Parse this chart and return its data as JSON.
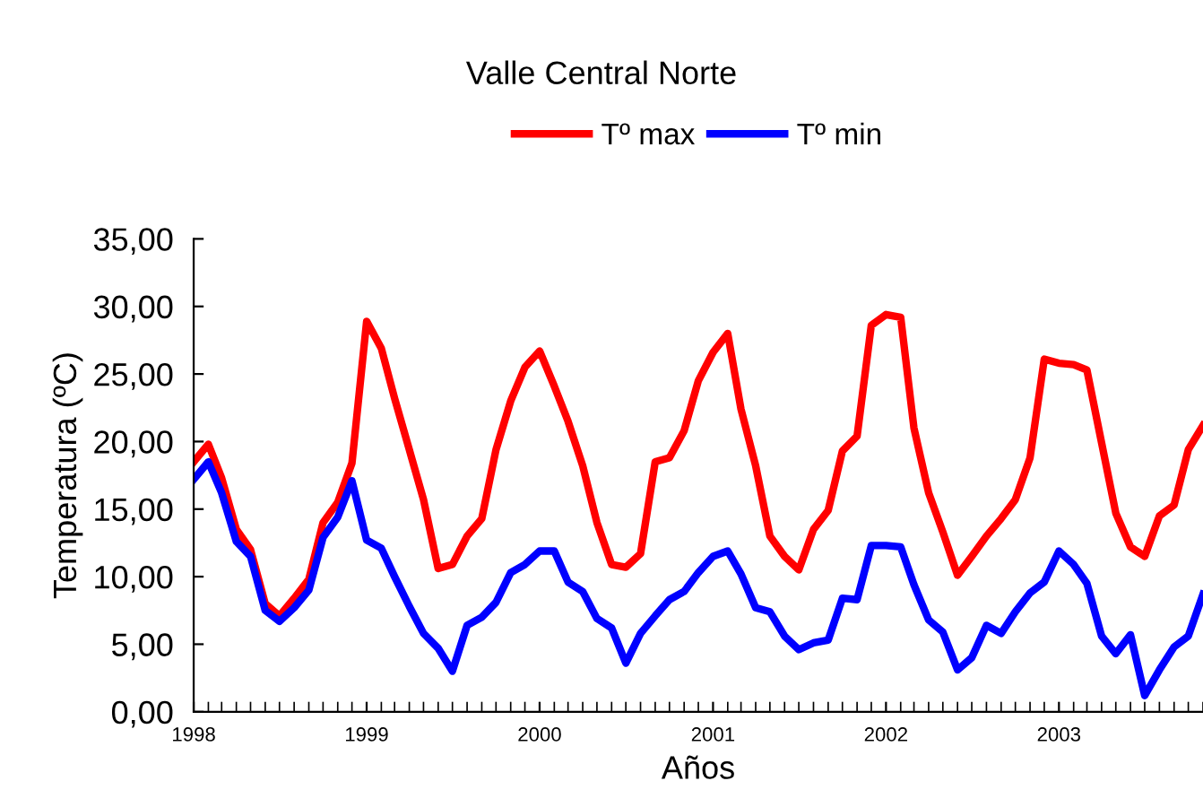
{
  "chart_data": {
    "type": "line",
    "title": "Valle Central Norte",
    "xlabel": "Años",
    "ylabel": "Temperatura (ºC)",
    "x": [
      "1998-01",
      "1998-02",
      "1998-03",
      "1998-04",
      "1998-05",
      "1998-06",
      "1998-07",
      "1998-08",
      "1998-09",
      "1998-10",
      "1998-11",
      "1998-12",
      "1999-01",
      "1999-02",
      "1999-03",
      "1999-04",
      "1999-05",
      "1999-06",
      "1999-07",
      "1999-08",
      "1999-09",
      "1999-10",
      "1999-11",
      "1999-12",
      "2000-01",
      "2000-02",
      "2000-03",
      "2000-04",
      "2000-05",
      "2000-06",
      "2000-07",
      "2000-08",
      "2000-09",
      "2000-10",
      "2000-11",
      "2000-12",
      "2001-01",
      "2001-02",
      "2001-03",
      "2001-04",
      "2001-05",
      "2001-06",
      "2001-07",
      "2001-08",
      "2001-09",
      "2001-10",
      "2001-11",
      "2001-12",
      "2002-01",
      "2002-02",
      "2002-03",
      "2002-04",
      "2002-05",
      "2002-06",
      "2002-07",
      "2002-08",
      "2002-09",
      "2002-10",
      "2002-11",
      "2002-12",
      "2003-01",
      "2003-02",
      "2003-03",
      "2003-04",
      "2003-05",
      "2003-06",
      "2003-07",
      "2003-08",
      "2003-09",
      "2003-10",
      "2003-11"
    ],
    "series": [
      {
        "name": "Tº max",
        "color": "#ff0000",
        "values": [
          18.5,
          19.8,
          17.3,
          13.5,
          12.0,
          8.0,
          7.1,
          8.4,
          9.8,
          14.0,
          15.5,
          18.4,
          28.9,
          26.9,
          23.2,
          19.4,
          15.7,
          10.6,
          10.9,
          13.0,
          14.3,
          19.4,
          23.0,
          25.5,
          26.7,
          24.1,
          21.5,
          18.2,
          14.0,
          10.9,
          10.7,
          11.7,
          18.5,
          18.8,
          20.8,
          24.5,
          26.6,
          28.0,
          22.4,
          18.2,
          13.0,
          11.5,
          10.5,
          13.5,
          14.9,
          19.3,
          20.4,
          28.6,
          29.4,
          29.2,
          21.0,
          16.2,
          13.3,
          10.1,
          11.5,
          13.0,
          14.3,
          15.7,
          18.8,
          26.1,
          25.8,
          25.7,
          25.3,
          19.9,
          14.7,
          12.2,
          11.5,
          14.5,
          15.3,
          19.4,
          21.2
        ]
      },
      {
        "name": "Tº min",
        "color": "#0000ff",
        "values": [
          17.2,
          18.5,
          16.2,
          12.6,
          11.5,
          7.5,
          6.7,
          7.7,
          9.0,
          12.9,
          14.4,
          17.1,
          12.7,
          12.1,
          10.0,
          7.8,
          5.8,
          4.7,
          3.0,
          6.4,
          7.0,
          8.1,
          10.3,
          10.9,
          11.9,
          11.9,
          9.6,
          8.9,
          6.9,
          6.2,
          3.6,
          5.8,
          7.1,
          8.3,
          8.9,
          10.3,
          11.5,
          11.9,
          10.2,
          7.7,
          7.4,
          5.6,
          4.6,
          5.1,
          5.3,
          8.4,
          8.3,
          12.3,
          12.3,
          12.2,
          9.4,
          6.8,
          5.9,
          3.1,
          4.0,
          6.4,
          5.8,
          7.4,
          8.8,
          9.6,
          11.9,
          10.9,
          9.5,
          5.6,
          4.3,
          5.7,
          1.2,
          3.1,
          4.8,
          5.6,
          8.7
        ]
      }
    ],
    "xlim": [
      "1998-01",
      "2003-11"
    ],
    "xticks": [
      {
        "value": "1998-01",
        "label": "1998"
      },
      {
        "value": "1999-01",
        "label": "1999"
      },
      {
        "value": "2000-01",
        "label": "2000"
      },
      {
        "value": "2001-01",
        "label": "2001"
      },
      {
        "value": "2002-01",
        "label": "2002"
      },
      {
        "value": "2003-01",
        "label": "2003"
      }
    ],
    "ylim": [
      0,
      35
    ],
    "yticks": [
      {
        "value": 0,
        "label": "0,00"
      },
      {
        "value": 5,
        "label": "5,00"
      },
      {
        "value": 10,
        "label": "10,00"
      },
      {
        "value": 15,
        "label": "15,00"
      },
      {
        "value": 20,
        "label": "20,00"
      },
      {
        "value": 25,
        "label": "25,00"
      },
      {
        "value": 30,
        "label": "30,00"
      },
      {
        "value": 35,
        "label": "35,00"
      }
    ],
    "grid": false,
    "legend": "top",
    "marker": "none",
    "line_style": "solid"
  }
}
